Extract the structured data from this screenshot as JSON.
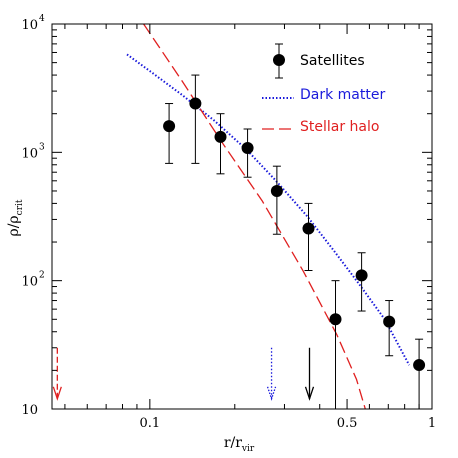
{
  "colors": {
    "axis": "#000000",
    "satellites": "#000000",
    "dark_matter": "#1a1adb",
    "stellar_halo": "#e02020"
  },
  "chart_data": {
    "type": "scatter",
    "xscale": "log",
    "yscale": "log",
    "xlim": [
      0.045,
      1.0
    ],
    "ylim": [
      10,
      10000
    ],
    "xlabel": {
      "main": "r/r",
      "sub": "vir"
    },
    "ylabel": {
      "main": "ρ/ρ",
      "sub": "crit"
    },
    "x_ticklabels": [
      {
        "value": 0.1,
        "label": "0.1"
      },
      {
        "value": 0.5,
        "label": "0.5"
      },
      {
        "value": 1.0,
        "label": "1"
      }
    ],
    "y_ticklabels": [
      {
        "value": 10,
        "label": "10",
        "sup": ""
      },
      {
        "value": 100,
        "label": "10",
        "sup": "2"
      },
      {
        "value": 1000,
        "label": "10",
        "sup": "3"
      },
      {
        "value": 10000,
        "label": "10",
        "sup": "4"
      }
    ],
    "legend": {
      "placement": "top-right",
      "entries": [
        {
          "key": "satellites",
          "label": "Satellites",
          "style": "marker-errorbar",
          "color": "#000000"
        },
        {
          "key": "dark_matter",
          "label": "Dark matter",
          "style": "dotted",
          "color": "#1a1adb"
        },
        {
          "key": "stellar_halo",
          "label": "Stellar halo",
          "style": "dashed",
          "color": "#e02020"
        }
      ]
    },
    "series": [
      {
        "name": "Satellites",
        "kind": "points",
        "points": [
          {
            "x": 0.117,
            "y": 1600,
            "ylo": 820,
            "yhi": 2400
          },
          {
            "x": 0.145,
            "y": 2400,
            "ylo": 820,
            "yhi": 4000
          },
          {
            "x": 0.178,
            "y": 1320,
            "ylo": 680,
            "yhi": 2000
          },
          {
            "x": 0.222,
            "y": 1080,
            "ylo": 640,
            "yhi": 1520
          },
          {
            "x": 0.282,
            "y": 500,
            "ylo": 230,
            "yhi": 780
          },
          {
            "x": 0.365,
            "y": 255,
            "ylo": 120,
            "yhi": 400
          },
          {
            "x": 0.455,
            "y": 50,
            "ylo": 10,
            "yhi": 100
          },
          {
            "x": 0.563,
            "y": 110,
            "ylo": 58,
            "yhi": 165
          },
          {
            "x": 0.705,
            "y": 48,
            "ylo": 26,
            "yhi": 70
          },
          {
            "x": 0.9,
            "y": 22,
            "ylo": 10,
            "yhi": 35
          }
        ]
      },
      {
        "name": "Dark matter",
        "kind": "curve",
        "points": [
          {
            "x": 0.083,
            "y": 5800
          },
          {
            "x": 0.1,
            "y": 4300
          },
          {
            "x": 0.13,
            "y": 2800
          },
          {
            "x": 0.17,
            "y": 1750
          },
          {
            "x": 0.22,
            "y": 1050
          },
          {
            "x": 0.28,
            "y": 600
          },
          {
            "x": 0.36,
            "y": 320
          },
          {
            "x": 0.45,
            "y": 170
          },
          {
            "x": 0.55,
            "y": 95
          },
          {
            "x": 0.68,
            "y": 50
          },
          {
            "x": 0.83,
            "y": 22
          }
        ]
      },
      {
        "name": "Stellar halo",
        "kind": "curve",
        "points": [
          {
            "x": 0.095,
            "y": 10000
          },
          {
            "x": 0.13,
            "y": 3600
          },
          {
            "x": 0.18,
            "y": 1200
          },
          {
            "x": 0.25,
            "y": 420
          },
          {
            "x": 0.35,
            "y": 118
          },
          {
            "x": 0.46,
            "y": 38
          },
          {
            "x": 0.54,
            "y": 17
          },
          {
            "x": 0.58,
            "y": 10
          }
        ]
      }
    ],
    "markers": [
      {
        "x": 0.047,
        "color": "#e02020",
        "style": "dashed",
        "y_top": 30,
        "y_bottom": 12
      },
      {
        "x": 0.27,
        "color": "#1a1adb",
        "style": "dotted",
        "y_top": 30,
        "y_bottom": 12
      },
      {
        "x": 0.368,
        "color": "#000000",
        "style": "solid",
        "y_top": 30,
        "y_bottom": 12
      }
    ]
  }
}
